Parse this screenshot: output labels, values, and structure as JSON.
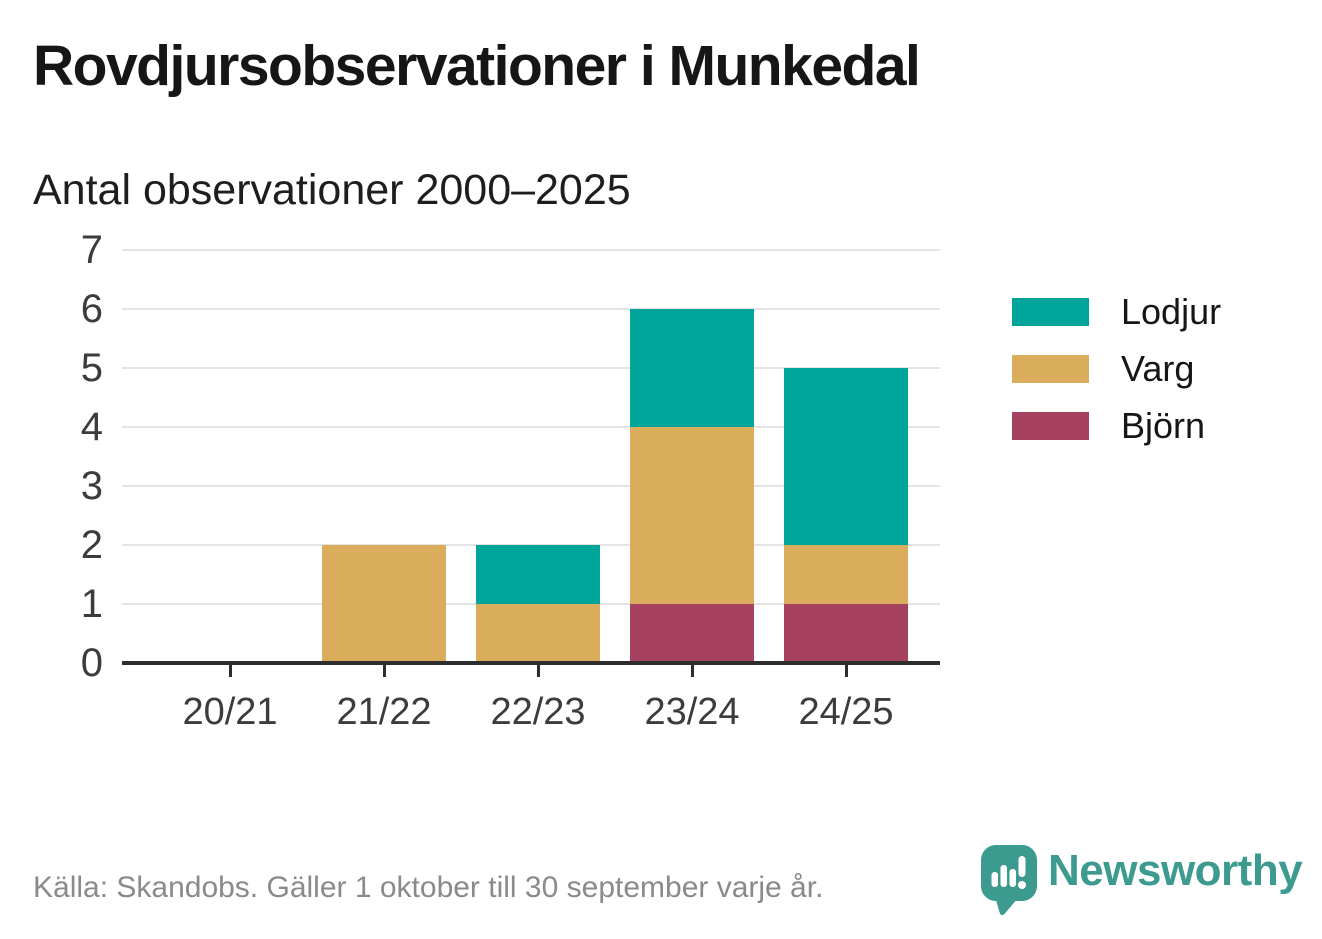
{
  "chart_data": {
    "type": "bar",
    "stacked": true,
    "title": "Rovdjursobservationer i Munkedal",
    "subtitle": "Antal observationer 2000–2025",
    "categories": [
      "20/21",
      "21/22",
      "22/23",
      "23/24",
      "24/25"
    ],
    "series": [
      {
        "name": "Lodjur",
        "color": "#00a59a",
        "values": [
          0,
          0,
          1,
          2,
          3
        ]
      },
      {
        "name": "Varg",
        "color": "#d9ad5b",
        "values": [
          0,
          2,
          1,
          3,
          1
        ]
      },
      {
        "name": "Björn",
        "color": "#a6415f",
        "values": [
          0,
          0,
          0,
          1,
          1
        ]
      }
    ],
    "stack_order_bottom_to_top": [
      "Björn",
      "Varg",
      "Lodjur"
    ],
    "totals": [
      0,
      2,
      2,
      6,
      5
    ],
    "xlabel": "",
    "ylabel": "",
    "ylim": [
      0,
      7
    ],
    "yticks": [
      0,
      1,
      2,
      3,
      4,
      5,
      6,
      7
    ],
    "grid": "horizontal",
    "legend_position": "right",
    "colors": {
      "axis": "#2e2e2e",
      "gridline": "#e4e4e4",
      "tick_label": "#3c3c3c"
    }
  },
  "footer": {
    "source": "Källa: Skandobs. Gäller 1 oktober till 30 september varje år.",
    "brand": "Newsworthy",
    "brand_color": "#3d9a8f"
  }
}
